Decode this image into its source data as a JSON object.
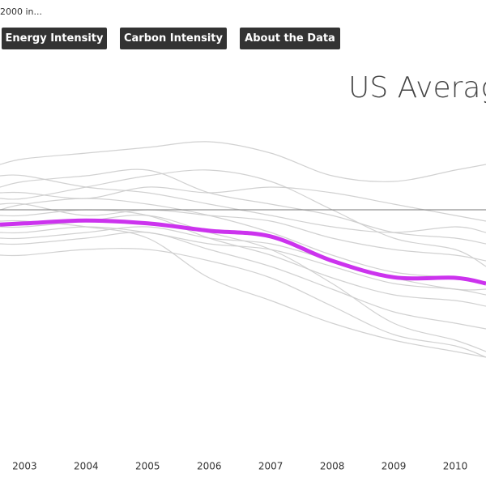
{
  "chart_data": {
    "type": "line",
    "title": "US Averag",
    "subtitle": "2000 in...",
    "buttons": [
      "Energy Intensity",
      "Carbon Intensity",
      "About the Data"
    ],
    "x": [
      2002.6,
      2003,
      2004,
      2005,
      2006,
      2007,
      2008,
      2009,
      2010,
      2010.5
    ],
    "xlim": [
      2002.6,
      2010.5
    ],
    "xticks": [
      2003,
      2004,
      2005,
      2006,
      2007,
      2008,
      2009,
      2010
    ],
    "ylim": [
      57,
      117
    ],
    "reference_line": 100,
    "series": [
      {
        "color": "#cccccc",
        "values": [
          101,
          101,
          99,
          100,
          99,
          98,
          95,
          93,
          92,
          91
        ]
      },
      {
        "color": "#cccccc",
        "values": [
          104,
          105,
          106,
          107,
          103,
          101,
          99,
          96,
          95,
          94
        ]
      },
      {
        "color": "#cccccc",
        "values": [
          96,
          96,
          97,
          96,
          94,
          93,
          90,
          87,
          86,
          85
        ]
      },
      {
        "color": "#cccccc",
        "values": [
          108,
          109,
          110,
          111,
          112,
          110,
          106,
          105,
          107,
          108
        ]
      },
      {
        "color": "#cccccc",
        "values": [
          99,
          99,
          100,
          99,
          95,
          92,
          88,
          85,
          84,
          83
        ]
      },
      {
        "color": "#cccccc",
        "values": [
          94,
          94,
          95,
          96,
          93,
          90,
          86,
          82,
          80,
          79
        ]
      },
      {
        "color": "#cccccc",
        "values": [
          103,
          103,
          102,
          104,
          103,
          104,
          103,
          101,
          99,
          98
        ]
      },
      {
        "color": "#cccccc",
        "values": [
          98,
          98,
          97,
          95,
          88,
          84,
          80,
          77,
          75,
          74
        ]
      },
      {
        "color": "#cccccc",
        "values": [
          100,
          101,
          102,
          101,
          99,
          96,
          92,
          89,
          88,
          87
        ]
      },
      {
        "color": "#cccccc",
        "values": [
          95,
          95,
          96,
          97,
          95,
          94,
          91,
          88,
          86,
          86
        ]
      },
      {
        "color": "#cccccc",
        "values": [
          106,
          106,
          104,
          103,
          101,
          99,
          97,
          96,
          97,
          96
        ]
      },
      {
        "color": "#cccccc",
        "values": [
          97,
          97,
          98,
          99,
          96,
          93,
          87,
          80,
          77,
          75
        ]
      },
      {
        "color": "#cccccc",
        "values": [
          102,
          102,
          104,
          106,
          107,
          105,
          100,
          95,
          93,
          90
        ]
      },
      {
        "color": "#cccccc",
        "values": [
          92,
          92,
          93,
          93,
          91,
          88,
          83,
          78,
          76,
          74
        ]
      },
      {
        "color": "#cc33ee",
        "values": [
          97.4,
          97.6,
          98.1,
          97.6,
          96.3,
          95.3,
          91,
          88.1,
          88,
          87
        ]
      }
    ]
  }
}
